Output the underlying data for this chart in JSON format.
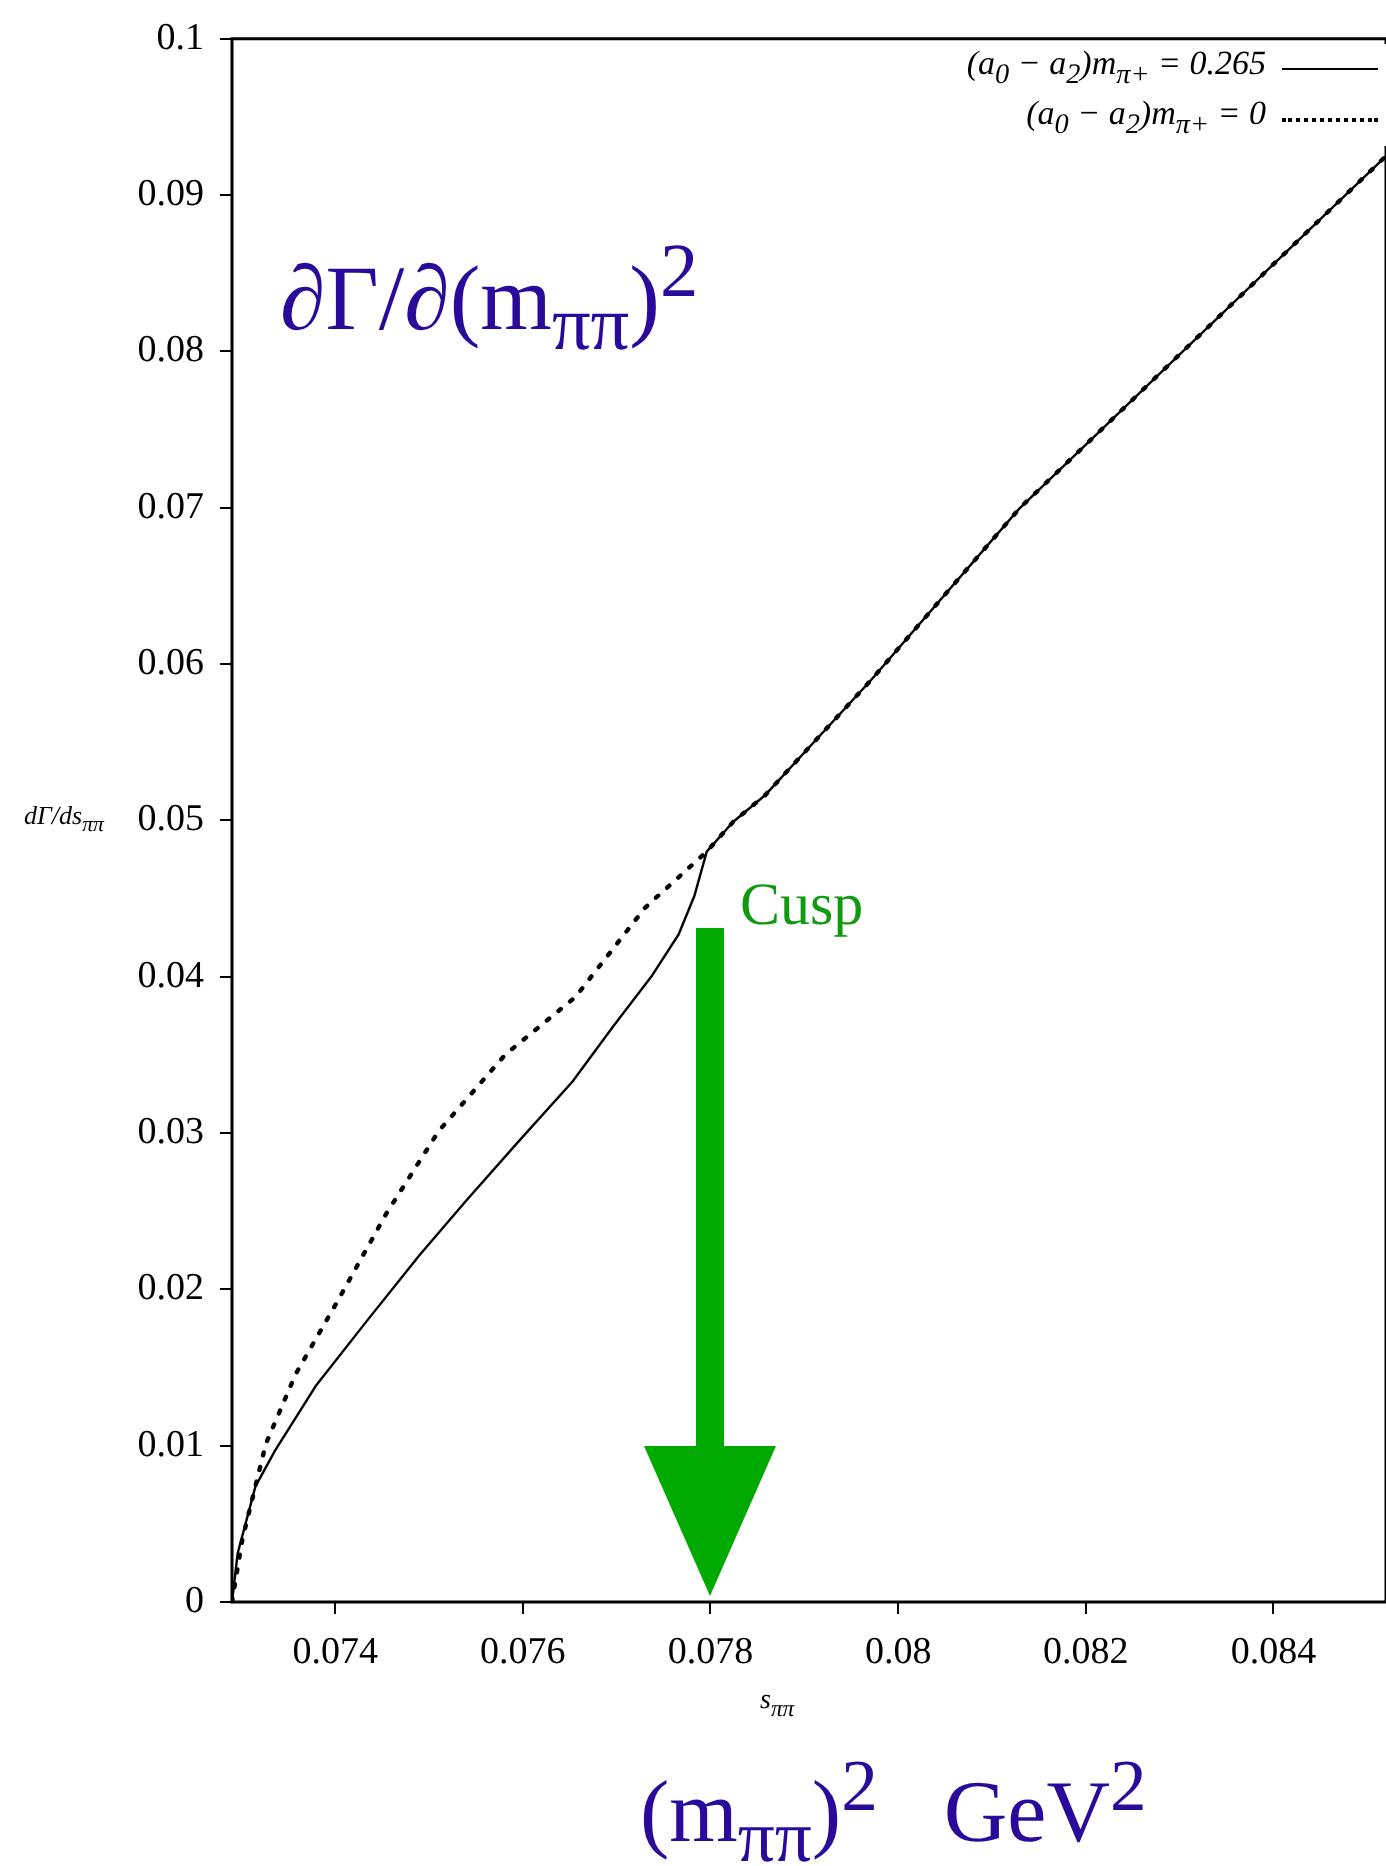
{
  "chart_data": {
    "type": "line",
    "xlabel": "s$_{ππ}$",
    "ylabel": "dΓ/ds$_{ππ}$",
    "xlim": [
      0.0729,
      0.0852
    ],
    "xticks": [
      0.074,
      0.076,
      0.078,
      0.08,
      0.082,
      0.084
    ],
    "ylim": [
      0,
      0.1
    ],
    "yticks": [
      0,
      0.01,
      0.02,
      0.03,
      0.04,
      0.05,
      0.06,
      0.07,
      0.08,
      0.09,
      0.1
    ],
    "grid": false,
    "legend": "top right",
    "marker": "none",
    "series": [
      {
        "name": "(a$_{0}$ − a$_{2}$)m$_{π+}$ = 0.265",
        "color": "#000000",
        "line_style": "solid",
        "x": [
          0.0729,
          0.07296,
          0.07315,
          0.07336,
          0.07379,
          0.07434,
          0.0749,
          0.0754,
          0.07596,
          0.07653,
          0.07696,
          0.07738,
          0.07766,
          0.07783,
          0.07796,
          0.07824,
          0.07858,
          0.0797,
          0.0813,
          0.0852
        ],
        "values": [
          0,
          0.0031,
          0.0074,
          0.0097,
          0.0138,
          0.018,
          0.0222,
          0.0257,
          0.0295,
          0.0333,
          0.0368,
          0.0401,
          0.0427,
          0.0452,
          0.048,
          0.0499,
          0.0516,
          0.0589,
          0.07,
          0.0925
        ]
      },
      {
        "name": "(a$_{0}$ − a$_{2}$)m$_{π+}$ = 0",
        "color": "#000000",
        "line_style": "dotted",
        "x": [
          0.0729,
          0.07301,
          0.07326,
          0.07358,
          0.07403,
          0.07454,
          0.0751,
          0.07581,
          0.07656,
          0.0773,
          0.07796,
          0.07824,
          0.07858,
          0.0797,
          0.0813,
          0.0852
        ],
        "values": [
          0,
          0.004,
          0.0101,
          0.0146,
          0.0193,
          0.0248,
          0.0301,
          0.035,
          0.0387,
          0.0444,
          0.048,
          0.0499,
          0.0516,
          0.0589,
          0.07,
          0.0925
        ]
      }
    ],
    "annotations": [
      "∂Γ/∂(m$_{ππ}$)$^{2}$",
      "Cusp",
      "(m$_{ππ}$)$^{2}$   GeV$^{2}$"
    ]
  }
}
